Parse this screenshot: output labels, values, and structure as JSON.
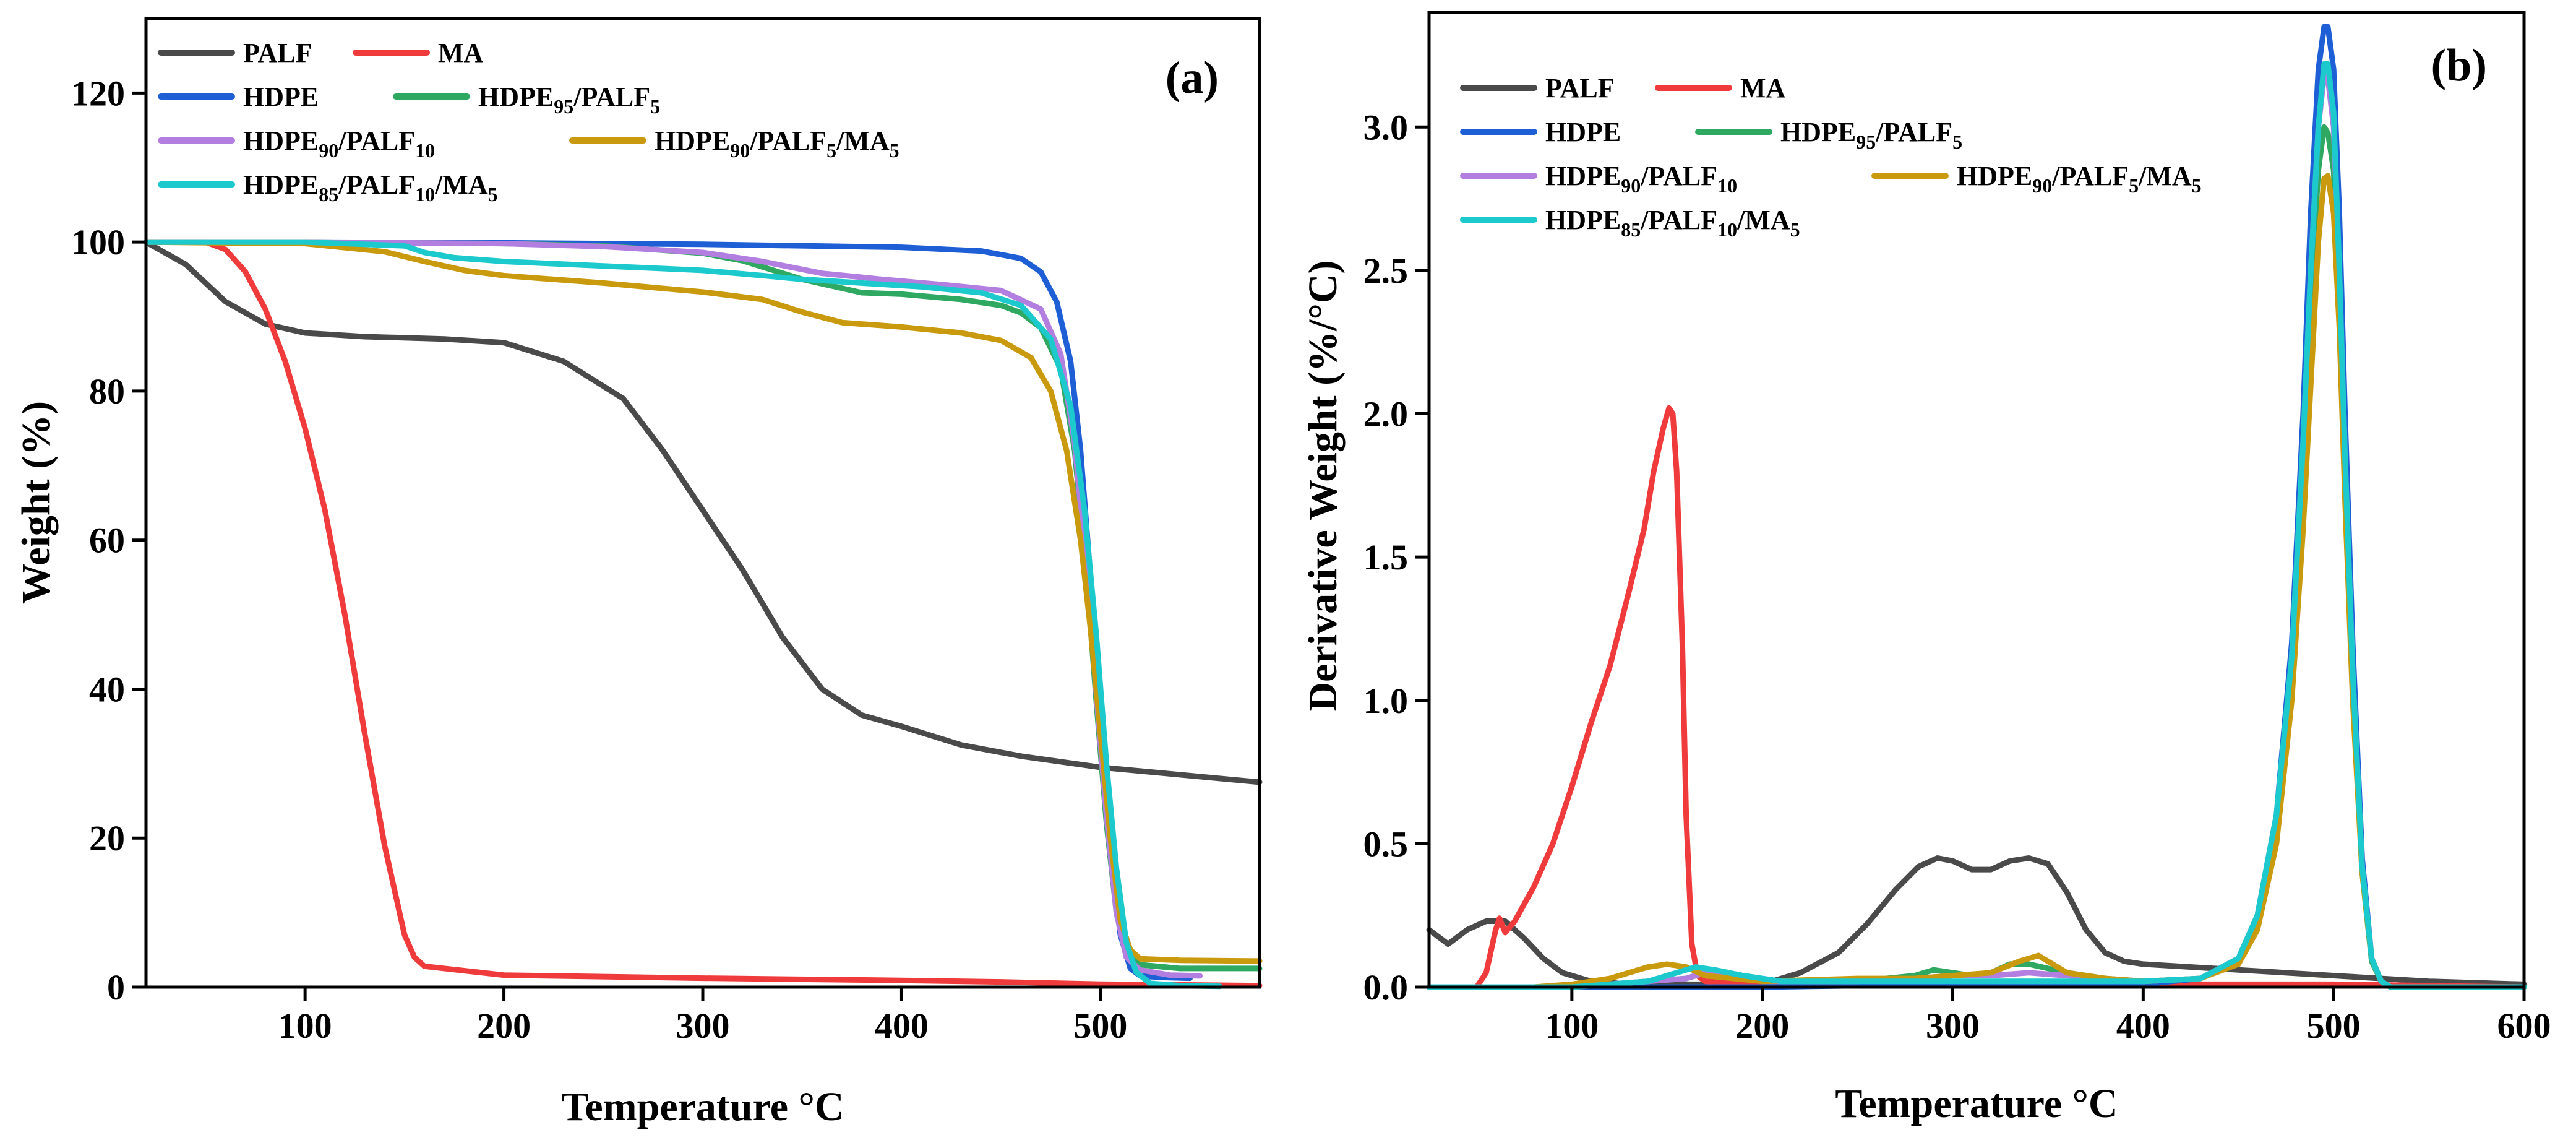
{
  "colors": {
    "PALF": "#4a4a4a",
    "MA": "#ef3b3b",
    "HDPE": "#1f5fd6",
    "HDPE95_PALF5": "#2fa862",
    "HDPE90_PALF10": "#b27fe0",
    "HDPE90_PALF5_MA5": "#c99a0e",
    "HDPE85_PALF10_MA5": "#1cc9cc"
  },
  "legend_entries": [
    {
      "key": "PALF",
      "base": "PALF",
      "parts": []
    },
    {
      "key": "MA",
      "base": "MA",
      "parts": []
    },
    {
      "key": "HDPE",
      "base": "HDPE",
      "parts": []
    },
    {
      "key": "HDPE95_PALF5",
      "base": "HDPE",
      "parts": [
        [
          "95",
          "sub"
        ],
        [
          "/PALF",
          "n"
        ],
        [
          "5",
          "sub"
        ]
      ]
    },
    {
      "key": "HDPE90_PALF10",
      "base": "HDPE",
      "parts": [
        [
          "90",
          "sub"
        ],
        [
          "/PALF",
          "n"
        ],
        [
          "10",
          "sub"
        ]
      ]
    },
    {
      "key": "HDPE90_PALF5_MA5",
      "base": "HDPE",
      "parts": [
        [
          "90",
          "sub"
        ],
        [
          "/PALF",
          "n"
        ],
        [
          "5",
          "sub"
        ],
        [
          "/MA",
          "n"
        ],
        [
          "5",
          "sub"
        ]
      ]
    },
    {
      "key": "HDPE85_PALF10_MA5",
      "base": "HDPE",
      "parts": [
        [
          "85",
          "sub"
        ],
        [
          "/PALF",
          "n"
        ],
        [
          "10",
          "sub"
        ],
        [
          "/MA",
          "n"
        ],
        [
          "5",
          "sub"
        ]
      ]
    }
  ],
  "chart_data": [
    {
      "type": "line",
      "panel_label": "(a)",
      "title": "",
      "xlabel": "Temperature °C",
      "ylabel": "Weight  (%)",
      "xlim": [
        20,
        580
      ],
      "ylim": [
        0,
        130
      ],
      "xticks": [
        100,
        200,
        300,
        400,
        500
      ],
      "yticks": [
        0,
        20,
        40,
        60,
        80,
        100,
        120
      ],
      "legend": "top-left",
      "series": [
        {
          "key": "PALF",
          "x": [
            20,
            40,
            60,
            80,
            100,
            130,
            170,
            200,
            230,
            260,
            280,
            300,
            320,
            340,
            360,
            380,
            400,
            430,
            460,
            500,
            540,
            580
          ],
          "y": [
            100,
            97,
            92,
            89,
            87.8,
            87.3,
            87.0,
            86.5,
            84,
            79,
            72,
            64,
            56,
            47,
            40,
            36.5,
            35,
            32.5,
            31,
            29.5,
            28.5,
            27.5
          ]
        },
        {
          "key": "MA",
          "x": [
            20,
            50,
            60,
            70,
            80,
            90,
            100,
            110,
            120,
            130,
            140,
            150,
            155,
            160,
            200,
            300,
            400,
            450,
            500,
            580
          ],
          "y": [
            100,
            100,
            99,
            96,
            91,
            84,
            75,
            64,
            50,
            34,
            19,
            7,
            4,
            2.8,
            1.6,
            1.2,
            0.9,
            0.7,
            0.4,
            0.2
          ]
        },
        {
          "key": "HDPE",
          "x": [
            20,
            100,
            200,
            300,
            400,
            440,
            460,
            470,
            478,
            485,
            490,
            495,
            500,
            505,
            510,
            515,
            520,
            530,
            545
          ],
          "y": [
            100,
            100,
            99.9,
            99.7,
            99.3,
            98.8,
            97.8,
            96,
            92,
            84,
            72,
            55,
            35,
            18,
            7,
            2.5,
            1.5,
            1.3,
            1.2
          ]
        },
        {
          "key": "HDPE95_PALF5",
          "x": [
            20,
            100,
            200,
            250,
            300,
            320,
            350,
            380,
            400,
            430,
            450,
            460,
            470,
            480,
            487,
            493,
            498,
            503,
            508,
            513,
            520,
            540,
            580
          ],
          "y": [
            100,
            100,
            99.8,
            99.5,
            98.5,
            97.5,
            95,
            93.2,
            93,
            92.3,
            91.5,
            90.5,
            88.5,
            83,
            72,
            55,
            38,
            22,
            10,
            4.5,
            3,
            2.5,
            2.5
          ]
        },
        {
          "key": "HDPE90_PALF10",
          "x": [
            20,
            100,
            200,
            250,
            300,
            330,
            360,
            390,
            420,
            450,
            470,
            480,
            487,
            493,
            498,
            503,
            508,
            513,
            520,
            535,
            550
          ],
          "y": [
            100,
            100,
            99.8,
            99.4,
            98.6,
            97.4,
            95.8,
            95,
            94.3,
            93.5,
            91,
            85,
            73,
            56,
            39,
            23,
            10,
            4,
            2.3,
            1.6,
            1.5
          ]
        },
        {
          "key": "HDPE90_PALF5_MA5",
          "x": [
            20,
            100,
            140,
            160,
            180,
            200,
            250,
            300,
            330,
            350,
            370,
            400,
            430,
            450,
            465,
            475,
            483,
            490,
            495,
            500,
            505,
            510,
            515,
            520,
            540,
            580
          ],
          "y": [
            100,
            99.8,
            98.7,
            97.4,
            96.2,
            95.5,
            94.5,
            93.3,
            92.3,
            90.6,
            89.2,
            88.6,
            87.8,
            86.8,
            84.5,
            80,
            72,
            60,
            48,
            34,
            20,
            9,
            5,
            3.8,
            3.6,
            3.5
          ]
        },
        {
          "key": "HDPE85_PALF10_MA5",
          "x": [
            20,
            100,
            150,
            160,
            175,
            200,
            250,
            300,
            330,
            350,
            380,
            410,
            440,
            460,
            475,
            485,
            492,
            498,
            503,
            508,
            513,
            518,
            525,
            540,
            560
          ],
          "y": [
            100,
            100,
            99.5,
            98.6,
            97.9,
            97.4,
            96.8,
            96.2,
            95.5,
            95,
            94.5,
            94,
            93.2,
            91.5,
            87,
            78,
            64,
            47,
            30,
            16,
            6,
            2,
            0.5,
            0.2,
            0.1
          ]
        }
      ]
    },
    {
      "type": "line",
      "panel_label": "(b)",
      "title": "",
      "xlabel": "Temperature °C",
      "ylabel": "Derivative Weight  (%/°C)",
      "xlim": [
        25,
        600
      ],
      "ylim": [
        0,
        3.4
      ],
      "xticks": [
        100,
        200,
        300,
        400,
        500,
        600
      ],
      "yticks": [
        0.0,
        0.5,
        1.0,
        1.5,
        2.0,
        2.5,
        3.0
      ],
      "legend": "top-left",
      "series": [
        {
          "key": "PALF",
          "x": [
            25,
            35,
            45,
            55,
            65,
            75,
            85,
            95,
            110,
            130,
            150,
            170,
            190,
            205,
            220,
            240,
            255,
            270,
            282,
            292,
            300,
            310,
            320,
            330,
            340,
            350,
            360,
            370,
            380,
            390,
            400,
            450,
            500,
            550,
            600
          ],
          "y": [
            0.2,
            0.15,
            0.2,
            0.23,
            0.23,
            0.17,
            0.1,
            0.05,
            0.02,
            0.01,
            0.01,
            0.01,
            0.01,
            0.02,
            0.05,
            0.12,
            0.22,
            0.34,
            0.42,
            0.45,
            0.44,
            0.41,
            0.41,
            0.44,
            0.45,
            0.43,
            0.33,
            0.2,
            0.12,
            0.09,
            0.08,
            0.06,
            0.04,
            0.02,
            0.01
          ]
        },
        {
          "key": "MA",
          "x": [
            25,
            50,
            55,
            60,
            62,
            65,
            70,
            80,
            90,
            100,
            110,
            120,
            130,
            138,
            143,
            148,
            151,
            153,
            155,
            158,
            160,
            163,
            166,
            170,
            200,
            300,
            400,
            500,
            600
          ],
          "y": [
            0,
            0,
            0.05,
            0.2,
            0.24,
            0.19,
            0.23,
            0.35,
            0.5,
            0.7,
            0.92,
            1.12,
            1.38,
            1.6,
            1.8,
            1.95,
            2.02,
            2.0,
            1.8,
            1.2,
            0.6,
            0.15,
            0.04,
            0.02,
            0.01,
            0.01,
            0.01,
            0.01,
            0
          ]
        },
        {
          "key": "HDPE",
          "x": [
            25,
            100,
            200,
            300,
            400,
            430,
            450,
            460,
            470,
            478,
            484,
            488,
            492,
            495,
            497,
            500,
            503,
            506,
            510,
            515,
            520,
            525,
            530,
            600
          ],
          "y": [
            0,
            0,
            0,
            0.01,
            0.01,
            0.03,
            0.1,
            0.25,
            0.6,
            1.2,
            2.0,
            2.7,
            3.2,
            3.35,
            3.35,
            3.2,
            2.7,
            2.0,
            1.2,
            0.45,
            0.1,
            0.02,
            0,
            0
          ]
        },
        {
          "key": "HDPE95_PALF5",
          "x": [
            25,
            100,
            160,
            170,
            200,
            250,
            280,
            290,
            300,
            310,
            320,
            330,
            340,
            360,
            380,
            400,
            430,
            450,
            460,
            470,
            478,
            484,
            488,
            492,
            495,
            497,
            500,
            503,
            506,
            510,
            515,
            520,
            525,
            530,
            600
          ],
          "y": [
            0,
            0,
            0.03,
            0.05,
            0.02,
            0.02,
            0.04,
            0.06,
            0.05,
            0.04,
            0.05,
            0.08,
            0.08,
            0.05,
            0.03,
            0.02,
            0.03,
            0.09,
            0.22,
            0.55,
            1.1,
            1.8,
            2.4,
            2.85,
            3.0,
            2.98,
            2.85,
            2.4,
            1.8,
            1.05,
            0.4,
            0.09,
            0.02,
            0,
            0
          ]
        },
        {
          "key": "HDPE90_PALF10",
          "x": [
            25,
            100,
            160,
            170,
            200,
            250,
            280,
            300,
            320,
            340,
            360,
            380,
            400,
            430,
            450,
            460,
            470,
            478,
            484,
            488,
            492,
            495,
            497,
            500,
            503,
            506,
            510,
            515,
            520,
            525,
            530,
            600
          ],
          "y": [
            0,
            0,
            0.03,
            0.05,
            0.02,
            0.02,
            0.03,
            0.04,
            0.04,
            0.05,
            0.04,
            0.03,
            0.02,
            0.03,
            0.1,
            0.25,
            0.58,
            1.15,
            1.9,
            2.5,
            3.0,
            3.18,
            3.17,
            3.0,
            2.5,
            1.85,
            1.1,
            0.42,
            0.1,
            0.02,
            0,
            0
          ]
        },
        {
          "key": "HDPE90_PALF5_MA5",
          "x": [
            25,
            80,
            100,
            120,
            140,
            150,
            160,
            170,
            200,
            250,
            280,
            300,
            320,
            335,
            345,
            350,
            360,
            380,
            400,
            430,
            450,
            460,
            470,
            478,
            484,
            488,
            492,
            495,
            497,
            500,
            503,
            506,
            510,
            515,
            520,
            525,
            530,
            600
          ],
          "y": [
            0,
            0,
            0.01,
            0.03,
            0.07,
            0.08,
            0.07,
            0.04,
            0.02,
            0.03,
            0.03,
            0.04,
            0.05,
            0.09,
            0.11,
            0.09,
            0.05,
            0.03,
            0.02,
            0.03,
            0.08,
            0.2,
            0.5,
            1.0,
            1.6,
            2.1,
            2.6,
            2.82,
            2.83,
            2.7,
            2.3,
            1.7,
            1.0,
            0.4,
            0.1,
            0.02,
            0,
            0
          ]
        },
        {
          "key": "HDPE85_PALF10_MA5",
          "x": [
            25,
            100,
            140,
            155,
            165,
            175,
            190,
            210,
            250,
            300,
            350,
            400,
            430,
            450,
            460,
            470,
            478,
            484,
            488,
            492,
            495,
            497,
            500,
            503,
            506,
            510,
            515,
            520,
            525,
            530,
            600
          ],
          "y": [
            0,
            0,
            0.02,
            0.05,
            0.07,
            0.06,
            0.04,
            0.02,
            0.02,
            0.02,
            0.02,
            0.02,
            0.03,
            0.1,
            0.25,
            0.6,
            1.15,
            1.9,
            2.5,
            3.0,
            3.22,
            3.22,
            3.05,
            2.5,
            1.85,
            1.1,
            0.42,
            0.1,
            0.02,
            0,
            0
          ]
        }
      ]
    }
  ]
}
